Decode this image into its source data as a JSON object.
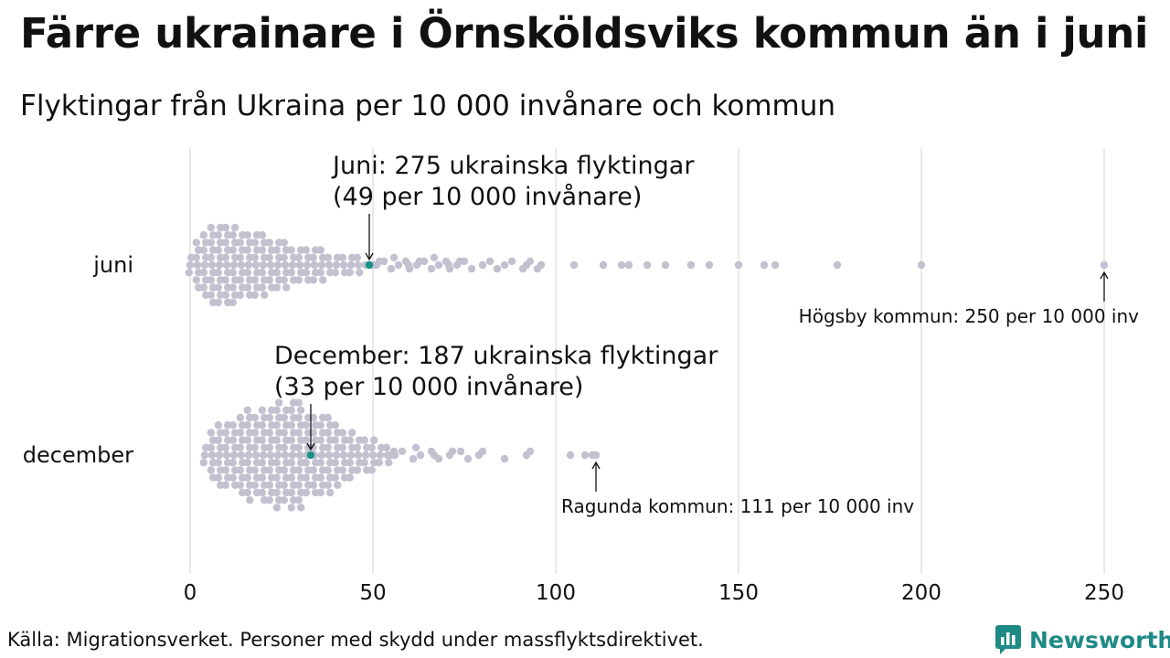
{
  "title": "Färre ukrainare i Örnsköldsviks kommun än i juni",
  "subtitle": "Flyktingar från Ukraina per 10 000 invånare och kommun",
  "source": "Källa: Migrationsverket. Personer med skydd under massflyktsdirektivet.",
  "brand": {
    "name": "Newsworthy",
    "icon": "newsworthy-logo-icon",
    "color": "#1e8a85"
  },
  "colors": {
    "dot": "#c3c0cf",
    "highlight": "#17938a",
    "grid": "#d3d3d3"
  },
  "chart_data": {
    "type": "scatter",
    "xlim": [
      0,
      250
    ],
    "xticks": [
      0,
      50,
      100,
      150,
      200,
      250
    ],
    "categories": [
      "juni",
      "december"
    ],
    "series": [
      {
        "name": "juni",
        "highlight": 49,
        "outliers": [
          51,
          53,
          55,
          57,
          59,
          60,
          62,
          64,
          66,
          68,
          70,
          71,
          73,
          75,
          77,
          80,
          82,
          84,
          86,
          88,
          91,
          92,
          93,
          95,
          96,
          105,
          113,
          118,
          120,
          125,
          130,
          137,
          142,
          150,
          157,
          160,
          177,
          200,
          250
        ]
      },
      {
        "name": "december",
        "highlight": 33,
        "outliers": [
          55,
          58,
          61,
          63,
          66,
          68,
          71,
          74,
          76,
          79,
          80,
          86,
          92,
          93,
          104,
          108,
          110,
          111
        ]
      }
    ],
    "annotations": [
      {
        "row": "juni",
        "value": 49,
        "line1": "Juni: 275 ukrainska flyktingar",
        "line2": "(49 per 10 000 invånare)"
      },
      {
        "row": "juni",
        "value": 250,
        "text": "Högsby kommun: 250 per 10 000 inv"
      },
      {
        "row": "december",
        "value": 33,
        "line1": "December: 187 ukrainska flyktingar",
        "line2": "(33 per 10 000 invånare)"
      },
      {
        "row": "december",
        "value": 111,
        "text": "Ragunda kommun: 111 per 10 000 inv"
      }
    ]
  }
}
